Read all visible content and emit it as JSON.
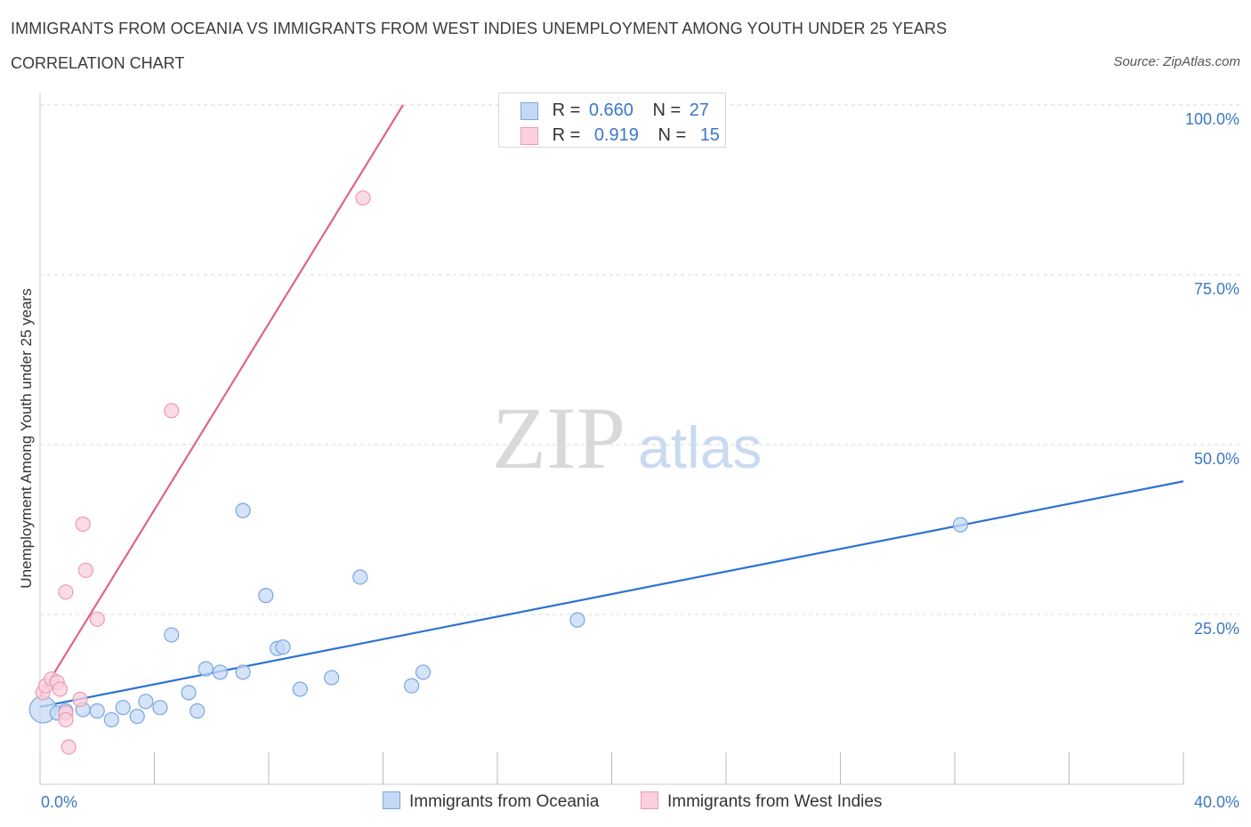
{
  "header": {
    "title": "IMMIGRANTS FROM OCEANIA VS IMMIGRANTS FROM WEST INDIES UNEMPLOYMENT AMONG YOUTH UNDER 25 YEARS",
    "subtitle": "CORRELATION CHART",
    "source": "Source: ZipAtlas.com"
  },
  "legend": {
    "oceania": {
      "r_label": "R =",
      "r_value": "0.660",
      "n_label": "N =",
      "n_value": "27"
    },
    "westindies": {
      "r_label": "R =",
      "r_value": "0.919",
      "n_label": "N =",
      "n_value": "15"
    }
  },
  "bottom_legend": {
    "oceania": "Immigrants from Oceania",
    "westindies": "Immigrants from West Indies"
  },
  "watermark": {
    "zip": "ZIP",
    "atlas": "atlas"
  },
  "colors": {
    "oceania_fill": "#c5d9f4",
    "oceania_stroke": "#7aa6e0",
    "oceania_line": "#2d72d2",
    "westindies_fill": "#f9d0dc",
    "westindies_stroke": "#ee99b4",
    "westindies_line": "#e0628c",
    "grid": "#d9d9d9",
    "tick_text": "#3b78c6"
  },
  "chart_data": {
    "type": "scatter",
    "title": "IMMIGRANTS FROM OCEANIA VS IMMIGRANTS FROM WEST INDIES UNEMPLOYMENT AMONG YOUTH UNDER 25 YEARS",
    "xlabel": "",
    "ylabel": "Unemployment Among Youth under 25 years",
    "xlim": [
      0,
      40
    ],
    "ylim": [
      0,
      100
    ],
    "x_tick_labels": [
      "0.0%",
      "40.0%"
    ],
    "y_ticks": [
      25,
      50,
      75,
      100
    ],
    "y_tick_labels": [
      "25.0%",
      "50.0%",
      "75.0%",
      "100.0%"
    ],
    "grid": true,
    "legend_position": "top-center",
    "series": [
      {
        "name": "Immigrants from Oceania",
        "r": 0.66,
        "n": 27,
        "trend": {
          "x": [
            0,
            40
          ],
          "y": [
            11.4,
            44.6
          ]
        },
        "points": [
          {
            "x": 0.1,
            "y": 11.0,
            "big": true
          },
          {
            "x": 0.6,
            "y": 10.5
          },
          {
            "x": 0.9,
            "y": 10.8
          },
          {
            "x": 1.5,
            "y": 11.0
          },
          {
            "x": 2.0,
            "y": 10.8
          },
          {
            "x": 2.5,
            "y": 9.5
          },
          {
            "x": 2.9,
            "y": 11.3
          },
          {
            "x": 3.4,
            "y": 10.0
          },
          {
            "x": 3.7,
            "y": 12.2
          },
          {
            "x": 4.2,
            "y": 11.3
          },
          {
            "x": 4.6,
            "y": 22.0
          },
          {
            "x": 5.2,
            "y": 13.5
          },
          {
            "x": 5.5,
            "y": 10.8
          },
          {
            "x": 5.8,
            "y": 17.0
          },
          {
            "x": 6.3,
            "y": 16.5
          },
          {
            "x": 7.1,
            "y": 40.3
          },
          {
            "x": 7.1,
            "y": 16.5
          },
          {
            "x": 7.9,
            "y": 27.8
          },
          {
            "x": 8.3,
            "y": 20.0
          },
          {
            "x": 8.5,
            "y": 20.2
          },
          {
            "x": 9.1,
            "y": 14.0
          },
          {
            "x": 10.2,
            "y": 15.7
          },
          {
            "x": 11.2,
            "y": 30.5
          },
          {
            "x": 13.0,
            "y": 14.5
          },
          {
            "x": 13.4,
            "y": 16.5
          },
          {
            "x": 18.8,
            "y": 24.2
          },
          {
            "x": 32.2,
            "y": 38.2
          }
        ]
      },
      {
        "name": "Immigrants from West Indies",
        "r": 0.919,
        "n": 15,
        "trend": {
          "x": [
            0,
            12.7
          ],
          "y": [
            13.0,
            100
          ]
        },
        "points": [
          {
            "x": 0.1,
            "y": 13.5
          },
          {
            "x": 0.2,
            "y": 14.5
          },
          {
            "x": 0.4,
            "y": 15.5
          },
          {
            "x": 0.6,
            "y": 15.0
          },
          {
            "x": 0.7,
            "y": 14.0
          },
          {
            "x": 0.9,
            "y": 28.3
          },
          {
            "x": 0.9,
            "y": 10.5
          },
          {
            "x": 1.0,
            "y": 5.5
          },
          {
            "x": 1.4,
            "y": 12.5
          },
          {
            "x": 1.5,
            "y": 38.3
          },
          {
            "x": 1.6,
            "y": 31.5
          },
          {
            "x": 2.0,
            "y": 24.3
          },
          {
            "x": 4.6,
            "y": 55.0
          },
          {
            "x": 11.3,
            "y": 86.3
          },
          {
            "x": 0.9,
            "y": 9.5
          }
        ]
      }
    ]
  }
}
